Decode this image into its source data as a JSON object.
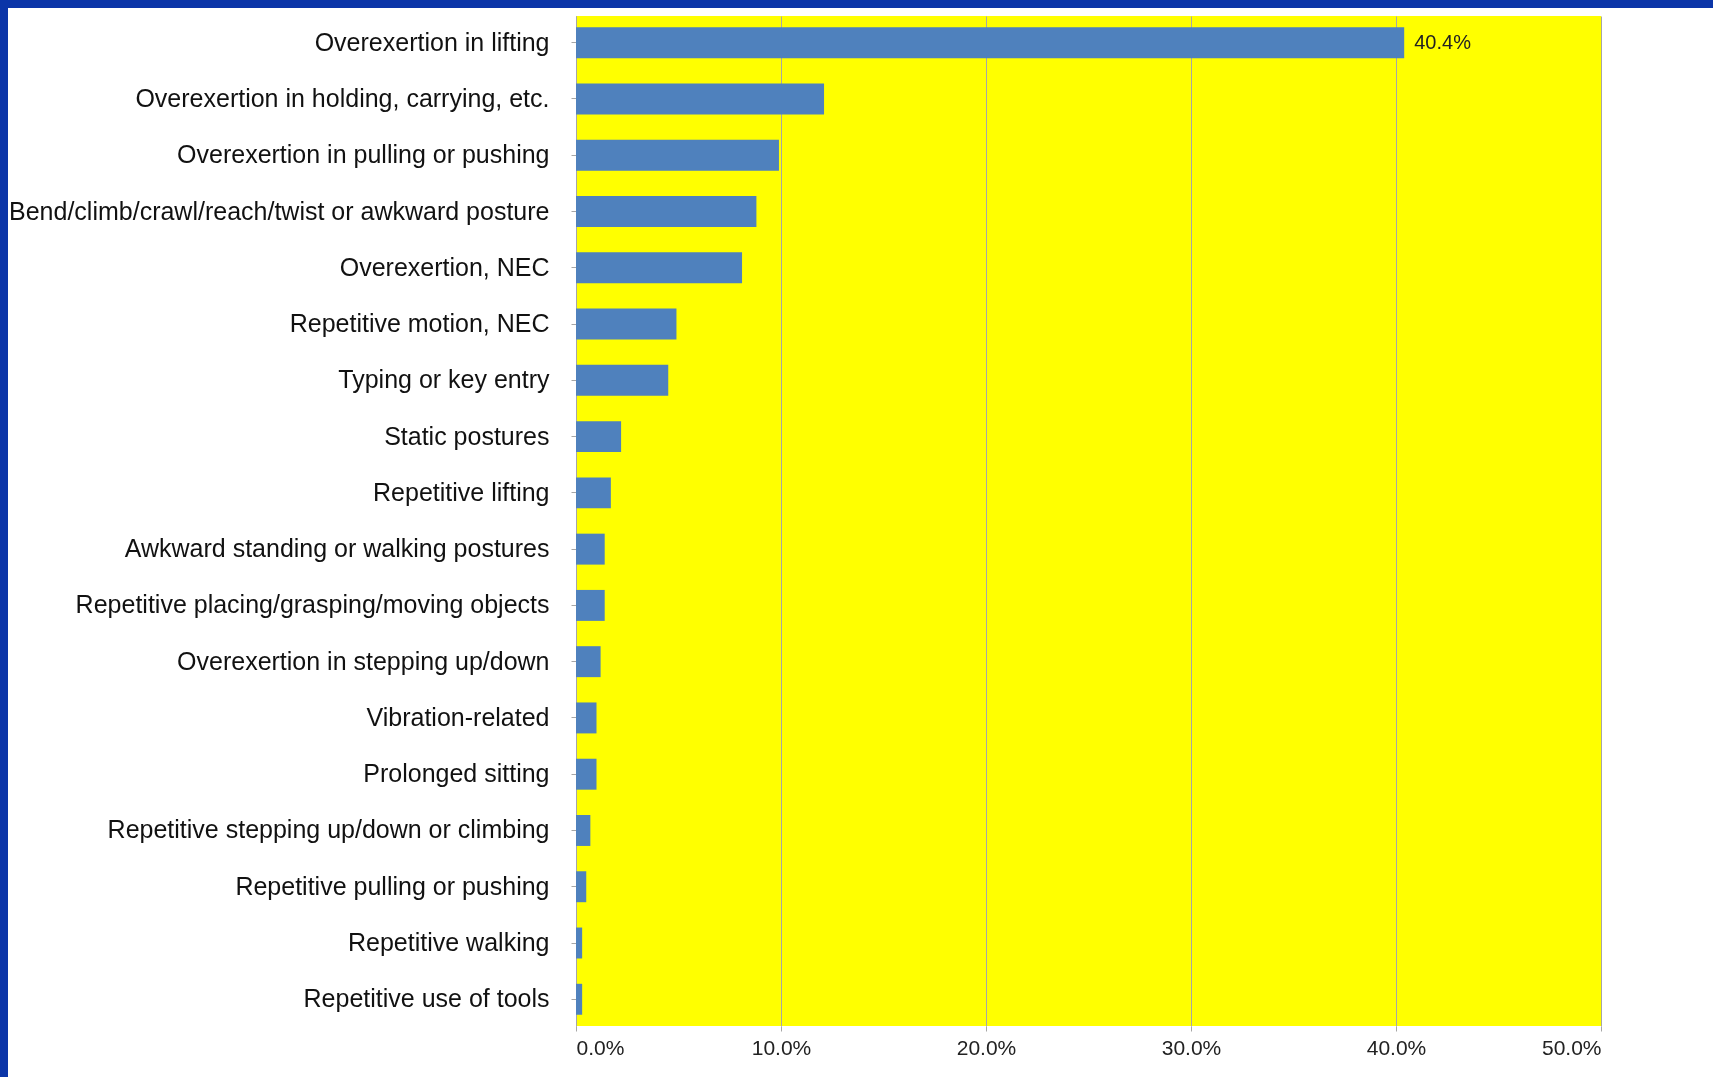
{
  "chart_data": {
    "type": "bar",
    "orientation": "horizontal",
    "categories": [
      "Overexertion in lifting",
      "Overexertion in holding, carrying, etc.",
      "Overexertion in pulling or pushing",
      "Bend/climb/crawl/reach/twist or awkward posture",
      "Overexertion, NEC",
      "Repetitive motion, NEC",
      "Typing or key entry",
      "Static postures",
      "Repetitive lifting",
      "Awkward standing or walking postures",
      "Repetitive placing/grasping/moving objects",
      "Overexertion in stepping up/down",
      "Vibration-related",
      "Prolonged sitting",
      "Repetitive stepping up/down or climbing",
      "Repetitive pulling or pushing",
      "Repetitive walking",
      "Repetitive use of tools"
    ],
    "values": [
      40.4,
      12.1,
      9.9,
      8.8,
      8.1,
      4.9,
      4.5,
      2.2,
      1.7,
      1.4,
      1.4,
      1.2,
      1.0,
      1.0,
      0.7,
      0.5,
      0.3,
      0.3
    ],
    "value_labels": [
      "40.4%",
      null,
      null,
      null,
      null,
      null,
      null,
      null,
      null,
      null,
      null,
      null,
      null,
      null,
      null,
      null,
      null,
      null
    ],
    "color": "#4f81bd",
    "xlim": [
      0,
      50
    ],
    "xticks": [
      {
        "value": 0,
        "label": "0.0%"
      },
      {
        "value": 10,
        "label": "10.0%"
      },
      {
        "value": 20,
        "label": "20.0%"
      },
      {
        "value": 30,
        "label": "30.0%"
      },
      {
        "value": 40,
        "label": "40.0%"
      },
      {
        "value": 50,
        "label": "50.0%"
      }
    ],
    "grid": "x"
  }
}
